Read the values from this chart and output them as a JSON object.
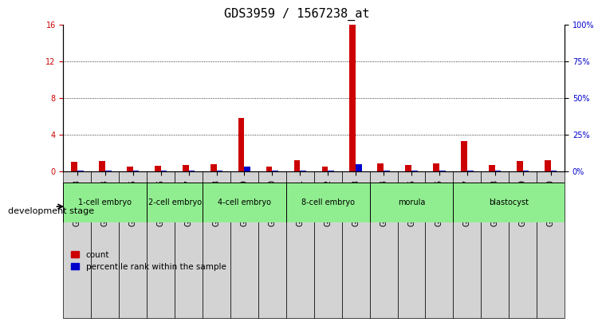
{
  "title": "GDS3959 / 1567238_at",
  "samples": [
    "GSM456643",
    "GSM456644",
    "GSM456645",
    "GSM456646",
    "GSM456647",
    "GSM456648",
    "GSM456649",
    "GSM456650",
    "GSM456651",
    "GSM456652",
    "GSM456653",
    "GSM456654",
    "GSM456655",
    "GSM456656",
    "GSM456657",
    "GSM456658",
    "GSM456659",
    "GSM456660"
  ],
  "count_values": [
    1.0,
    1.1,
    0.5,
    0.6,
    0.7,
    0.8,
    5.8,
    0.5,
    1.2,
    0.5,
    16.0,
    0.9,
    0.7,
    0.9,
    3.3,
    0.7,
    1.1,
    1.2
  ],
  "percentile_values": [
    0.45,
    0.5,
    0.3,
    0.3,
    0.35,
    0.3,
    3.4,
    0.5,
    0.6,
    0.3,
    5.0,
    0.3,
    0.3,
    0.4,
    0.3,
    0.3,
    0.45,
    0.3
  ],
  "stages": [
    {
      "label": "1-cell embryo",
      "start": 0,
      "end": 3
    },
    {
      "label": "2-cell embryo",
      "start": 3,
      "end": 5
    },
    {
      "label": "4-cell embryo",
      "start": 5,
      "end": 8
    },
    {
      "label": "8-cell embryo",
      "start": 8,
      "end": 11
    },
    {
      "label": "morula",
      "start": 11,
      "end": 14
    },
    {
      "label": "blastocyst",
      "start": 14,
      "end": 18
    }
  ],
  "ylim_left": [
    0,
    16
  ],
  "ylim_right": [
    0,
    100
  ],
  "yticks_left": [
    0,
    4,
    8,
    12,
    16
  ],
  "yticks_right": [
    0,
    25,
    50,
    75,
    100
  ],
  "ytick_labels_right": [
    "0%",
    "25%",
    "50%",
    "75%",
    "100%"
  ],
  "count_color": "#cc0000",
  "percentile_color": "#0000cc",
  "bar_width": 0.35,
  "stage_bg_color": "#90ee90",
  "sample_bg_color": "#d3d3d3",
  "legend_count_label": "count",
  "legend_percentile_label": "percentile rank within the sample",
  "dev_stage_label": "development stage",
  "title_fontsize": 11,
  "axis_fontsize": 7,
  "label_fontsize": 8
}
